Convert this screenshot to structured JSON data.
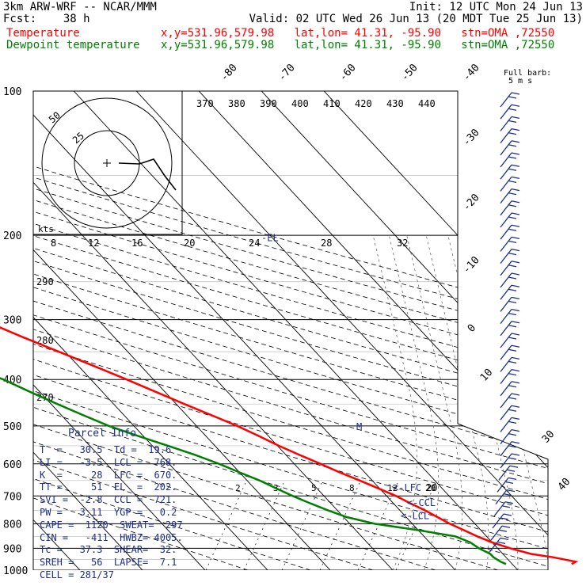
{
  "header": {
    "line1_left": "3km ARW-WRF -- NCAR/MMM",
    "line1_right": "Init: 12 UTC Mon 24 Jun 13",
    "line2_left": "Fcst:    38 h",
    "line2_right": "Valid: 02 UTC Wed 26 Jun 13 (20 MDT Tue 25 Jun 13)",
    "temp_label": "Temperature",
    "temp_info": "x,y=531.96,579.98   lat,lon= 41.31, -95.90   stn=OMA ,72550",
    "dew_label": "Dewpoint temperature",
    "dew_info": "x,y=531.96,579.98   lat,lon= 41.31, -95.90   stn=OMA ,72550"
  },
  "colors": {
    "temperature": "#ff0000",
    "dewpoint": "#008000",
    "barbs": "#1c2f8c",
    "grid": "#000000"
  },
  "parcel_info": {
    "title": "Parcel Info",
    "rows": [
      "T  =   30.5  Td =  19.6",
      "LI =   -3.5  LCL =  768.",
      "K  =     28  LFC =  670.",
      "TT =     51  EL  =  202.",
      "SVI =  -2.8  CCL =  721.",
      "PW =   3.11  YGP =   0.2",
      "CAPE =  1120  SWEAT=  297",
      "CIN =   -411  HWBZ= 4005.",
      "Tc =   37.3  SHEAR=  32.",
      "SREH =   56  LAPSE=  7.1",
      "CELL = 281/37"
    ]
  },
  "labels": {
    "hodograph_units": "kts",
    "full_barb": "Full barb:",
    "full_barb_value": "5 m s",
    "level_markers": [
      "EL",
      "LFC",
      "CCL",
      "LCL",
      "M"
    ]
  },
  "chart_data": {
    "type": "line",
    "chart_kind": "skew-T log-P diagram",
    "y_axis": "pressure (hPa)",
    "y_scale": "log",
    "ylim": [
      1000,
      100
    ],
    "pressure_ticks": [
      100,
      200,
      300,
      400,
      500,
      600,
      700,
      800,
      900,
      1000
    ],
    "temperature_ticks": [
      -80,
      -70,
      -60,
      -50,
      -40,
      -30,
      -20,
      -10,
      0,
      10,
      20,
      30,
      40
    ],
    "theta_ticks": [
      370,
      380,
      390,
      400,
      410,
      420,
      430,
      440
    ],
    "theta_e_ticks": [
      270,
      280,
      290
    ],
    "mixing_ratio_ticks": [
      2,
      3,
      5,
      8,
      12,
      20
    ],
    "hodograph_ticks": [
      8,
      12,
      16,
      20,
      24,
      28,
      32
    ],
    "hodograph_ring_labels": [
      25,
      50
    ],
    "series": [
      {
        "name": "Temperature",
        "color": "#ff0000",
        "points": [
          [
            971,
            29.5
          ],
          [
            960,
            30.5
          ],
          [
            940,
            27.5
          ],
          [
            925,
            24.5
          ],
          [
            900,
            22.0
          ],
          [
            875,
            20.0
          ],
          [
            850,
            18.5
          ],
          [
            825,
            17.3
          ],
          [
            800,
            16.0
          ],
          [
            775,
            15.0
          ],
          [
            750,
            14.0
          ],
          [
            725,
            12.7
          ],
          [
            700,
            11.5
          ],
          [
            675,
            9.8
          ],
          [
            650,
            8.0
          ],
          [
            625,
            6.0
          ],
          [
            600,
            4.2
          ],
          [
            575,
            2.2
          ],
          [
            550,
            0.2
          ],
          [
            525,
            -1.5
          ],
          [
            500,
            -3.5
          ],
          [
            475,
            -6.0
          ],
          [
            450,
            -8.7
          ],
          [
            425,
            -11.4
          ],
          [
            400,
            -14.3
          ],
          [
            375,
            -17.5
          ],
          [
            350,
            -21.0
          ],
          [
            325,
            -24.8
          ],
          [
            300,
            -28.6
          ],
          [
            275,
            -33.0
          ],
          [
            250,
            -38.0
          ],
          [
            225,
            -43.5
          ],
          [
            210,
            -47.3
          ],
          [
            200,
            -50.0
          ],
          [
            190,
            -52.0
          ],
          [
            180,
            -53.5
          ],
          [
            170,
            -54.5
          ],
          [
            160,
            -56.5
          ],
          [
            150,
            -58.0
          ],
          [
            140,
            -60.5
          ],
          [
            130,
            -63.5
          ],
          [
            120,
            -66.0
          ],
          [
            110,
            -70.0
          ],
          [
            100,
            -73.0
          ]
        ]
      },
      {
        "name": "Dewpoint temperature",
        "color": "#008000",
        "points": [
          [
            971,
            19.0
          ],
          [
            960,
            18.5
          ],
          [
            940,
            18.0
          ],
          [
            925,
            18.0
          ],
          [
            900,
            17.0
          ],
          [
            875,
            16.5
          ],
          [
            850,
            15.0
          ],
          [
            825,
            10.0
          ],
          [
            800,
            4.0
          ],
          [
            775,
            0.5
          ],
          [
            750,
            -1.5
          ],
          [
            725,
            -3.3
          ],
          [
            700,
            -5.0
          ],
          [
            675,
            -6.5
          ],
          [
            650,
            -8.0
          ],
          [
            625,
            -10.0
          ],
          [
            600,
            -12.0
          ],
          [
            575,
            -14.5
          ],
          [
            550,
            -17.5
          ],
          [
            525,
            -20.8
          ],
          [
            500,
            -24.0
          ],
          [
            475,
            -26.5
          ],
          [
            450,
            -29.0
          ],
          [
            425,
            -31.5
          ],
          [
            400,
            -34.0
          ],
          [
            375,
            -37.5
          ],
          [
            350,
            -41.0
          ],
          [
            325,
            -44.0
          ],
          [
            300,
            -48.0
          ],
          [
            275,
            -50.0
          ],
          [
            250,
            -52.5
          ],
          [
            225,
            -55.0
          ],
          [
            200,
            -58.0
          ],
          [
            175,
            -61.0
          ],
          [
            150,
            -65.0
          ],
          [
            125,
            -70.0
          ],
          [
            100,
            -75.0
          ]
        ]
      }
    ],
    "levels": {
      "LCL": 768,
      "LFC": 670,
      "CCL": 721,
      "EL": 202
    }
  }
}
